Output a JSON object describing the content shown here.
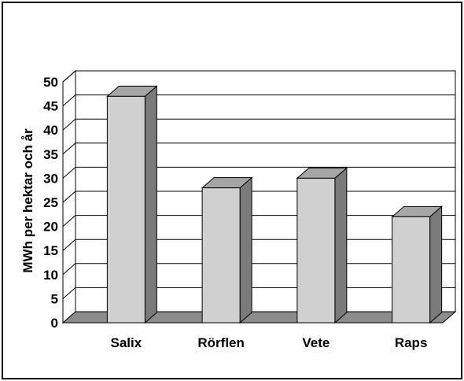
{
  "chart_data": {
    "type": "bar",
    "style": "3d",
    "categories": [
      "Salix",
      "Rörflen",
      "Vete",
      "Raps"
    ],
    "values": [
      47,
      28,
      30,
      22
    ],
    "ylabel": "MWh per hektar och år",
    "xlabel": "",
    "ylim": [
      0,
      50
    ],
    "yticks": [
      0,
      5,
      10,
      15,
      20,
      25,
      30,
      35,
      40,
      45,
      50
    ],
    "grid": true,
    "colors": {
      "bar_front": "#d0d0d0",
      "bar_side": "#7a7a7a",
      "bar_top": "#a6a6a6",
      "floor": "#8c8c8c",
      "grid": "#000000"
    }
  }
}
